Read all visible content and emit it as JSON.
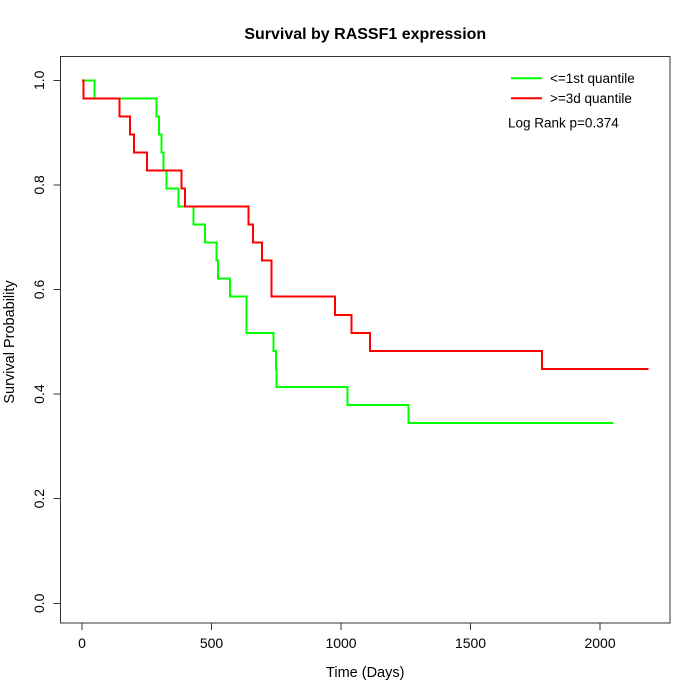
{
  "page": {
    "background": "#ffffff"
  },
  "chart_data": {
    "type": "line",
    "style": "kaplan-meier-step",
    "title": "Survival by RASSF1 expression",
    "xlabel": "Time (Days)",
    "ylabel": "Survival Probability",
    "grid": false,
    "xlim": [
      -83,
      2270
    ],
    "ylim": [
      -0.0377,
      1.0455
    ],
    "x_ticks": [
      {
        "v": 0,
        "label": "0"
      },
      {
        "v": 500,
        "label": "500"
      },
      {
        "v": 1000,
        "label": "1000"
      },
      {
        "v": 1500,
        "label": "1500"
      },
      {
        "v": 2000,
        "label": "2000"
      }
    ],
    "y_ticks": [
      {
        "v": 0.0,
        "label": "0.0"
      },
      {
        "v": 0.2,
        "label": "0.2"
      },
      {
        "v": 0.4,
        "label": "0.4"
      },
      {
        "v": 0.6,
        "label": "0.6"
      },
      {
        "v": 0.8,
        "label": "0.8"
      },
      {
        "v": 1.0,
        "label": "1.0"
      }
    ],
    "legend": {
      "position": "top-right",
      "annotation": "Log Rank p=0.374"
    },
    "series": [
      {
        "id": "first-quartile",
        "name": "<=1st quantile",
        "color": "#00ff00",
        "end_time": 2051,
        "steps": [
          [
            0,
            1.0
          ],
          [
            48,
            0.9655
          ],
          [
            288,
            0.931
          ],
          [
            297,
            0.8966
          ],
          [
            306,
            0.8621
          ],
          [
            315,
            0.8276
          ],
          [
            327,
            0.7931
          ],
          [
            372,
            0.7586
          ],
          [
            430,
            0.7241
          ],
          [
            475,
            0.6897
          ],
          [
            520,
            0.6552
          ],
          [
            526,
            0.6207
          ],
          [
            571,
            0.5862
          ],
          [
            636,
            0.5172
          ],
          [
            739,
            0.4828
          ],
          [
            749,
            0.4483
          ],
          [
            751,
            0.4138
          ],
          [
            1025,
            0.3793
          ],
          [
            1260,
            0.3448
          ]
        ]
      },
      {
        "id": "third-quartile",
        "name": ">=3d quantile",
        "color": "#ff0000",
        "end_time": 2187,
        "steps": [
          [
            0,
            1.0
          ],
          [
            5,
            0.9655
          ],
          [
            144,
            0.931
          ],
          [
            185,
            0.8966
          ],
          [
            201,
            0.8621
          ],
          [
            250,
            0.8276
          ],
          [
            385,
            0.7931
          ],
          [
            398,
            0.7586
          ],
          [
            642,
            0.7241
          ],
          [
            661,
            0.6897
          ],
          [
            694,
            0.6552
          ],
          [
            732,
            0.5862
          ],
          [
            977,
            0.5517
          ],
          [
            1041,
            0.5172
          ],
          [
            1112,
            0.4828
          ],
          [
            1775,
            0.4483
          ]
        ]
      }
    ]
  }
}
